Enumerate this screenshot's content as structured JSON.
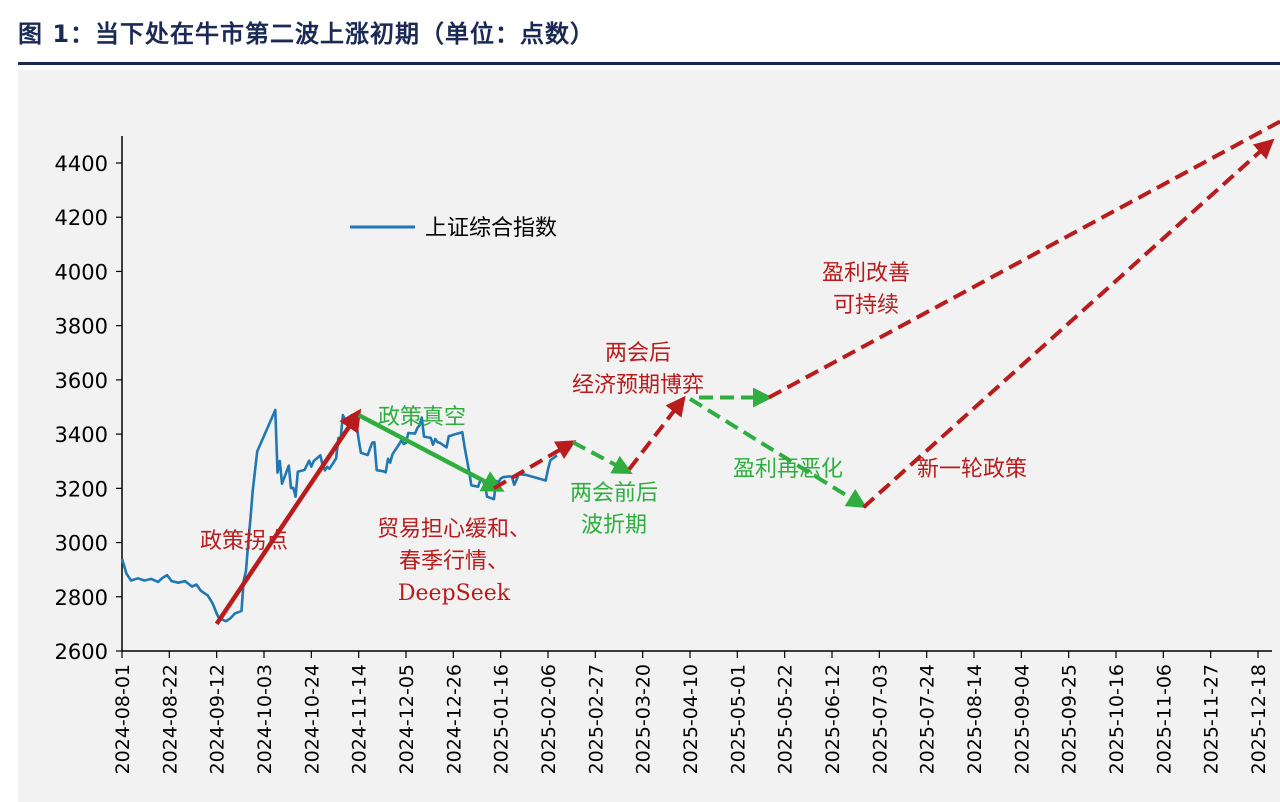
{
  "title": "图 1：当下处在牛市第二波上涨初期（单位：点数）",
  "colors": {
    "index": "#1f77b4",
    "red": "#b81c1c",
    "green": "#2fae3f",
    "title": "#1b2a55"
  },
  "chart_data": {
    "type": "line",
    "ylim": [
      2600,
      4500
    ],
    "yticks": [
      2600,
      2800,
      3000,
      3200,
      3400,
      3600,
      3800,
      4000,
      4200,
      4400
    ],
    "xticks": [
      "2024-08-01",
      "2024-08-22",
      "2024-09-12",
      "2024-10-03",
      "2024-10-24",
      "2024-11-14",
      "2024-12-05",
      "2024-12-26",
      "2025-01-16",
      "2025-02-06",
      "2025-02-27",
      "2025-03-20",
      "2025-04-10",
      "2025-05-01",
      "2025-05-22",
      "2025-06-12",
      "2025-07-03",
      "2025-07-24",
      "2025-08-14",
      "2025-09-04",
      "2025-09-25",
      "2025-10-16",
      "2025-11-06",
      "2025-11-27",
      "2025-12-18"
    ],
    "legend": "上证综合指数",
    "series": [
      {
        "name": "上证综合指数",
        "points": [
          [
            "2024-08-01",
            2940
          ],
          [
            "2024-08-03",
            2885
          ],
          [
            "2024-08-05",
            2860
          ],
          [
            "2024-08-08",
            2868
          ],
          [
            "2024-08-11",
            2860
          ],
          [
            "2024-08-14",
            2866
          ],
          [
            "2024-08-17",
            2855
          ],
          [
            "2024-08-19",
            2870
          ],
          [
            "2024-08-21",
            2880
          ],
          [
            "2024-08-23",
            2858
          ],
          [
            "2024-08-26",
            2852
          ],
          [
            "2024-08-29",
            2858
          ],
          [
            "2024-09-01",
            2838
          ],
          [
            "2024-09-03",
            2845
          ],
          [
            "2024-09-05",
            2822
          ],
          [
            "2024-09-08",
            2805
          ],
          [
            "2024-09-10",
            2778
          ],
          [
            "2024-09-11",
            2760
          ],
          [
            "2024-09-12",
            2738
          ],
          [
            "2024-09-13",
            2722
          ],
          [
            "2024-09-16",
            2710
          ],
          [
            "2024-09-18",
            2720
          ],
          [
            "2024-09-20",
            2738
          ],
          [
            "2024-09-23",
            2748
          ],
          [
            "2024-09-24",
            2860
          ],
          [
            "2024-09-25",
            2896
          ],
          [
            "2024-09-26",
            3000
          ],
          [
            "2024-09-27",
            3090
          ],
          [
            "2024-09-28",
            3190
          ],
          [
            "2024-09-30",
            3336
          ],
          [
            "2024-10-08",
            3489
          ],
          [
            "2024-10-09",
            3258
          ],
          [
            "2024-10-10",
            3301
          ],
          [
            "2024-10-11",
            3217
          ],
          [
            "2024-10-14",
            3284
          ],
          [
            "2024-10-15",
            3201
          ],
          [
            "2024-10-16",
            3202
          ],
          [
            "2024-10-17",
            3169
          ],
          [
            "2024-10-18",
            3261
          ],
          [
            "2024-10-21",
            3268
          ],
          [
            "2024-10-22",
            3285
          ],
          [
            "2024-10-23",
            3302
          ],
          [
            "2024-10-24",
            3280
          ],
          [
            "2024-10-25",
            3300
          ],
          [
            "2024-10-28",
            3322
          ],
          [
            "2024-10-29",
            3286
          ],
          [
            "2024-10-30",
            3266
          ],
          [
            "2024-10-31",
            3279
          ],
          [
            "2024-11-01",
            3272
          ],
          [
            "2024-11-04",
            3310
          ],
          [
            "2024-11-05",
            3386
          ],
          [
            "2024-11-06",
            3383
          ],
          [
            "2024-11-07",
            3470
          ],
          [
            "2024-11-08",
            3452
          ],
          [
            "2024-11-11",
            3470
          ],
          [
            "2024-11-12",
            3421
          ],
          [
            "2024-11-13",
            3439
          ],
          [
            "2024-11-14",
            3379
          ],
          [
            "2024-11-15",
            3331
          ],
          [
            "2024-11-18",
            3323
          ],
          [
            "2024-11-19",
            3346
          ],
          [
            "2024-11-20",
            3368
          ],
          [
            "2024-11-21",
            3370
          ],
          [
            "2024-11-22",
            3267
          ],
          [
            "2024-11-25",
            3263
          ],
          [
            "2024-11-26",
            3259
          ],
          [
            "2024-11-27",
            3309
          ],
          [
            "2024-11-28",
            3295
          ],
          [
            "2024-11-29",
            3326
          ],
          [
            "2024-12-02",
            3363
          ],
          [
            "2024-12-03",
            3378
          ],
          [
            "2024-12-04",
            3364
          ],
          [
            "2024-12-05",
            3368
          ],
          [
            "2024-12-06",
            3404
          ],
          [
            "2024-12-09",
            3402
          ],
          [
            "2024-12-10",
            3422
          ],
          [
            "2024-12-11",
            3432
          ],
          [
            "2024-12-12",
            3461
          ],
          [
            "2024-12-13",
            3391
          ],
          [
            "2024-12-16",
            3386
          ],
          [
            "2024-12-17",
            3361
          ],
          [
            "2024-12-18",
            3382
          ],
          [
            "2024-12-19",
            3370
          ],
          [
            "2024-12-20",
            3368
          ],
          [
            "2024-12-23",
            3351
          ],
          [
            "2024-12-24",
            3393
          ],
          [
            "2024-12-25",
            3394
          ],
          [
            "2024-12-26",
            3398
          ],
          [
            "2024-12-27",
            3400
          ],
          [
            "2024-12-30",
            3407
          ],
          [
            "2024-12-31",
            3352
          ],
          [
            "2025-01-02",
            3262
          ],
          [
            "2025-01-03",
            3211
          ],
          [
            "2025-01-06",
            3206
          ],
          [
            "2025-01-07",
            3230
          ],
          [
            "2025-01-08",
            3230
          ],
          [
            "2025-01-09",
            3212
          ],
          [
            "2025-01-10",
            3169
          ],
          [
            "2025-01-13",
            3160
          ],
          [
            "2025-01-14",
            3227
          ],
          [
            "2025-01-15",
            3222
          ],
          [
            "2025-01-16",
            3236
          ],
          [
            "2025-01-17",
            3241
          ],
          [
            "2025-01-20",
            3244
          ],
          [
            "2025-01-21",
            3242
          ],
          [
            "2025-01-22",
            3213
          ],
          [
            "2025-01-23",
            3230
          ],
          [
            "2025-01-24",
            3252
          ],
          [
            "2025-01-27",
            3250
          ],
          [
            "2025-02-05",
            3229
          ],
          [
            "2025-02-06",
            3270
          ],
          [
            "2025-02-07",
            3303
          ],
          [
            "2025-02-10",
            3322
          ]
        ]
      }
    ],
    "arrows": [
      {
        "from": [
          "2024-09-12",
          2700
        ],
        "to": [
          "2024-11-14",
          3480
        ],
        "color": "red",
        "style": "solid"
      },
      {
        "from": [
          "2024-11-14",
          3470
        ],
        "to": [
          "2025-01-16",
          3195
        ],
        "color": "green",
        "style": "solid"
      },
      {
        "from": [
          "2025-01-13",
          3200
        ],
        "to": [
          "2025-02-17",
          3370
        ],
        "color": "red",
        "style": "dashed"
      },
      {
        "from": [
          "2025-02-17",
          3370
        ],
        "to": [
          "2025-03-14",
          3260
        ],
        "color": "green",
        "style": "dashed"
      },
      {
        "from": [
          "2025-03-14",
          3270
        ],
        "to": [
          "2025-04-07",
          3530
        ],
        "color": "red",
        "style": "dashed"
      },
      {
        "from": [
          "2025-04-14",
          3535
        ],
        "to": [
          "2025-05-15",
          3535
        ],
        "color": "green",
        "style": "dashed"
      },
      {
        "from": [
          "2025-05-15",
          3535
        ],
        "to": [
          "2026-01-05",
          4590
        ],
        "color": "red",
        "style": "dashed"
      },
      {
        "from": [
          "2025-04-10",
          3530
        ],
        "to": [
          "2025-06-26",
          3135
        ],
        "color": "green",
        "style": "dashed"
      },
      {
        "from": [
          "2025-06-26",
          3130
        ],
        "to": [
          "2025-12-24",
          4480
        ],
        "color": "red",
        "style": "dashed"
      }
    ],
    "annotations": [
      {
        "lines": [
          "政策拐点"
        ],
        "color": "red"
      },
      {
        "lines": [
          "政策真空"
        ],
        "color": "green"
      },
      {
        "lines": [
          "贸易担心缓和、",
          "春季行情、",
          "DeepSeek"
        ],
        "color": "red"
      },
      {
        "lines": [
          "两会前后",
          "波折期"
        ],
        "color": "green"
      },
      {
        "lines": [
          "两会后",
          "经济预期博弈"
        ],
        "color": "red"
      },
      {
        "lines": [
          "盈利再恶化"
        ],
        "color": "green"
      },
      {
        "lines": [
          "盈利改善",
          "可持续"
        ],
        "color": "red"
      },
      {
        "lines": [
          "新一轮政策"
        ],
        "color": "red"
      }
    ]
  }
}
